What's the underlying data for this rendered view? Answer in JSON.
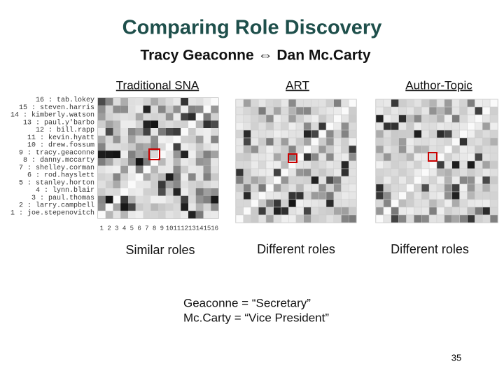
{
  "title": "Comparing Role Discovery",
  "subtitle": "Tracy Geaconne ⇔ Dan Mc.Carty",
  "panels": [
    {
      "heading": "Traditional SNA",
      "caption": "Similar roles",
      "row_labels": [
        "16 : tab.lokey",
        "15 : steven.harris",
        "14 : kimberly.watson",
        "13 : paul.y'barbo",
        "12 : bill.rapp",
        "11 : kevin.hyatt",
        "10 : drew.fossum",
        "9 : tracy.geaconne",
        "8 : danny.mccarty",
        "7 : shelley.corman",
        "6 : rod.hayslett",
        "5 : stanley.horton",
        "4 : lynn.blair",
        "3 : paul.thomas",
        "2 : larry.campbell",
        "1 : joe.stepenovitch"
      ],
      "column_labels": [
        "1",
        "2",
        "3",
        "4",
        "5",
        "6",
        "7",
        "8",
        "9",
        "10",
        "11",
        "12",
        "13",
        "14",
        "15",
        "16"
      ]
    },
    {
      "heading": "ART",
      "caption": "Different roles"
    },
    {
      "heading": "Author-Topic",
      "caption": "Different roles"
    }
  ],
  "notes": [
    "Geaconne = “Secretary”",
    "Mc.Carty = “Vice President”"
  ],
  "page_number": "35"
}
